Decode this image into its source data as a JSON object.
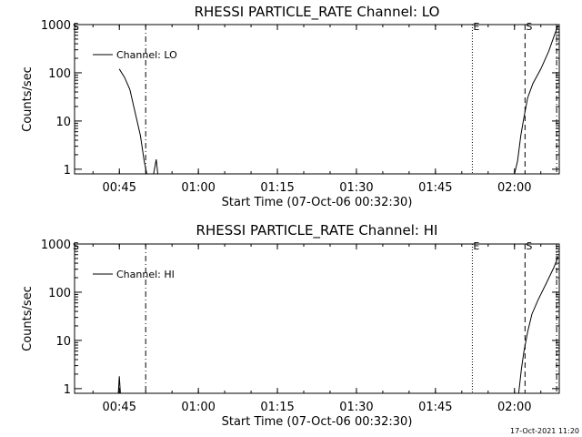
{
  "footer": {
    "timestamp": "17-Oct-2021 11:20"
  },
  "chart_data": [
    {
      "type": "line",
      "title": "RHESSI PARTICLE_RATE Channel: LO",
      "xlabel": "Start Time (07-Oct-06 00:32:30)",
      "ylabel": "Counts/sec",
      "yscale": "log",
      "xlim_minutes": [
        36.5,
        128.5
      ],
      "ylim": [
        0.8,
        1000
      ],
      "x_ticks": [
        "00:45",
        "01:00",
        "01:15",
        "01:30",
        "01:45",
        "02:00"
      ],
      "y_ticks": [
        "1",
        "10",
        "100",
        "1000"
      ],
      "legend": {
        "position": "top-left",
        "label": "Channel: LO"
      },
      "markers": [
        {
          "label": "E",
          "time": "01:52",
          "style": "dotted"
        },
        {
          "label": "S",
          "time": "02:02",
          "style": "dashed"
        }
      ],
      "reference_lines": [
        {
          "time": "00:50",
          "style": "dash-dot"
        },
        {
          "time": "02:08",
          "style": "dash-dot"
        }
      ],
      "edge_mark": "S",
      "series": [
        {
          "name": "Channel: LO",
          "segments": [
            [
              [
                45.0,
                120
              ],
              [
                46.0,
                80
              ],
              [
                47.0,
                45
              ],
              [
                48.0,
                15
              ],
              [
                49.0,
                5
              ],
              [
                49.7,
                1.5
              ],
              [
                50.2,
                0.8
              ]
            ],
            [
              [
                51.5,
                0.8
              ],
              [
                52.0,
                1.6
              ],
              [
                52.3,
                0.8
              ]
            ],
            [
              [
                120.0,
                0.8
              ],
              [
                120.6,
                1.5
              ],
              [
                121.2,
                5
              ],
              [
                121.8,
                12
              ],
              [
                122.5,
                30
              ],
              [
                123.5,
                60
              ],
              [
                125.0,
                120
              ],
              [
                126.5,
                280
              ],
              [
                127.8,
                700
              ],
              [
                128.3,
                950
              ]
            ]
          ]
        }
      ]
    },
    {
      "type": "line",
      "title": "RHESSI PARTICLE_RATE Channel: HI",
      "xlabel": "Start Time (07-Oct-06 00:32:30)",
      "ylabel": "Counts/sec",
      "yscale": "log",
      "xlim_minutes": [
        36.5,
        128.5
      ],
      "ylim": [
        0.8,
        1000
      ],
      "x_ticks": [
        "00:45",
        "01:00",
        "01:15",
        "01:30",
        "01:45",
        "02:00"
      ],
      "y_ticks": [
        "1",
        "10",
        "100",
        "1000"
      ],
      "legend": {
        "position": "top-left",
        "label": "Channel: HI"
      },
      "markers": [
        {
          "label": "E",
          "time": "01:52",
          "style": "dotted"
        },
        {
          "label": "S",
          "time": "02:02",
          "style": "dashed"
        }
      ],
      "reference_lines": [
        {
          "time": "00:50",
          "style": "dash-dot"
        },
        {
          "time": "02:08",
          "style": "dash-dot"
        }
      ],
      "edge_mark": "S",
      "series": [
        {
          "name": "Channel: HI",
          "segments": [
            [
              [
                44.8,
                0.8
              ],
              [
                45.0,
                1.8
              ],
              [
                45.2,
                0.8
              ]
            ],
            [
              [
                120.8,
                0.8
              ],
              [
                121.3,
                2.5
              ],
              [
                121.8,
                6
              ],
              [
                122.5,
                15
              ],
              [
                123.3,
                35
              ],
              [
                124.5,
                70
              ],
              [
                126.0,
                150
              ],
              [
                127.5,
                330
              ],
              [
                128.3,
                550
              ]
            ]
          ]
        }
      ]
    }
  ]
}
